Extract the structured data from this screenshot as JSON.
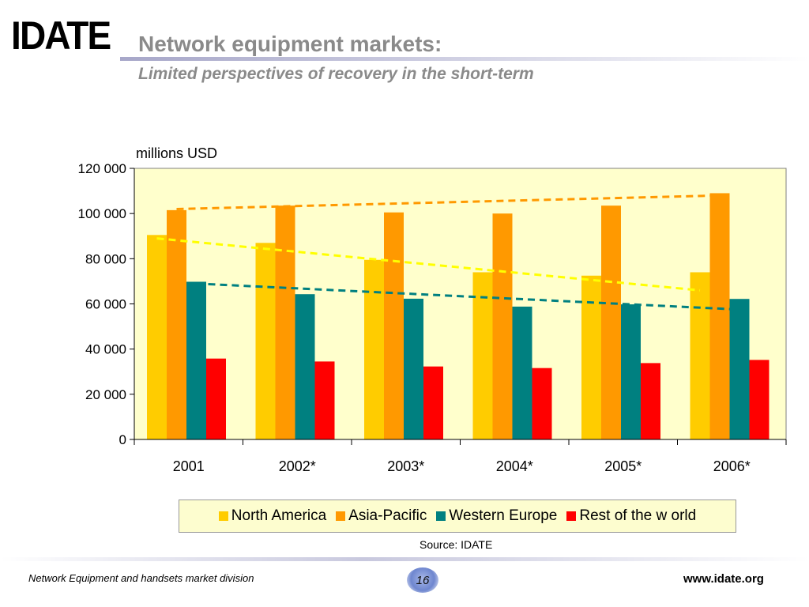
{
  "header": {
    "logo_text": "IDATE",
    "title": "Network equipment markets:",
    "subtitle": "Limited perspectives of recovery in the short-term"
  },
  "chart_data": {
    "type": "bar",
    "unit_label": "millions USD",
    "categories": [
      "2001",
      "2002*",
      "2003*",
      "2004*",
      "2005*",
      "2006*"
    ],
    "ylim": [
      0,
      120000
    ],
    "yticks": [
      0,
      20000,
      40000,
      60000,
      80000,
      100000,
      120000
    ],
    "ytick_labels": [
      "0",
      "20 000",
      "40 000",
      "60 000",
      "80 000",
      "100 000",
      "120 000"
    ],
    "grid": false,
    "plot_background": "#ffffcc",
    "series": [
      {
        "name": "North America",
        "color": "#ffcc00",
        "values": [
          90500,
          87000,
          79500,
          74000,
          72500,
          74000
        ]
      },
      {
        "name": "Asia-Pacific",
        "color": "#ff9900",
        "values": [
          101500,
          103500,
          100500,
          100000,
          103500,
          109000
        ]
      },
      {
        "name": "Western Europe",
        "color": "#008080",
        "values": [
          69800,
          64300,
          62300,
          58800,
          59800,
          62200
        ]
      },
      {
        "name": "Rest of the w orld",
        "color": "#ff0000",
        "values": [
          35800,
          34500,
          32300,
          31600,
          33800,
          35200
        ]
      }
    ],
    "trendlines": [
      {
        "series": "Asia-Pacific",
        "color": "#ff9900",
        "values": [
          102000,
          108000
        ]
      },
      {
        "series": "North America",
        "color": "#ffff00",
        "values": [
          89000,
          66000
        ]
      },
      {
        "series": "Western Europe",
        "color": "#008080",
        "values": [
          69000,
          57500
        ]
      }
    ],
    "legend_position": "bottom",
    "source": "Source: IDATE"
  },
  "footer": {
    "division": "Network Equipment and handsets market division",
    "page_number": "16",
    "website": "www.idate.org"
  }
}
